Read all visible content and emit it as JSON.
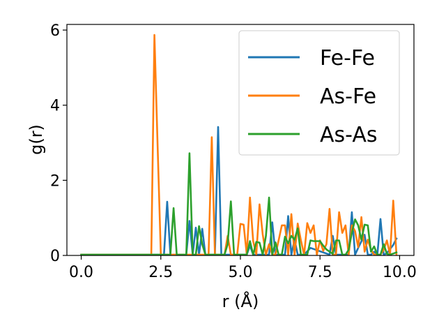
{
  "chart_data": {
    "type": "line",
    "xlabel": "r (Å)",
    "ylabel": "g(r)",
    "xlim": [
      -0.45,
      10.45
    ],
    "ylim": [
      0,
      6.15
    ],
    "xticks": [
      0.0,
      2.5,
      5.0,
      7.5,
      10.0
    ],
    "xtick_labels": [
      "0.0",
      "2.5",
      "5.0",
      "7.5",
      "10.0"
    ],
    "yticks": [
      0,
      2,
      4,
      6
    ],
    "ytick_labels": [
      "0",
      "2",
      "4",
      "6"
    ],
    "grid": false,
    "legend_position": "upper-right",
    "series": [
      {
        "name": "Fe-Fe",
        "color": "#1f77b4",
        "x": [
          0.0,
          2.5,
          2.6,
          2.7,
          2.8,
          3.3,
          3.4,
          3.5,
          3.6,
          3.7,
          3.8,
          3.9,
          4.2,
          4.3,
          4.4,
          4.6,
          5.2,
          5.3,
          5.4,
          5.9,
          6.0,
          6.1,
          6.4,
          6.5,
          6.6,
          6.7,
          6.8,
          7.0,
          7.2,
          7.8,
          7.9,
          8.0,
          8.4,
          8.5,
          8.6,
          8.7,
          8.9,
          9.0,
          9.1,
          9.2,
          9.3,
          9.4,
          9.5,
          9.6,
          9.8,
          9.9
        ],
        "values": [
          0.02,
          0.02,
          0.02,
          1.43,
          0.02,
          0.02,
          0.92,
          0.02,
          0.74,
          0.02,
          0.71,
          0.02,
          0.02,
          3.42,
          0.02,
          0.02,
          0.02,
          0.26,
          0.02,
          0.02,
          0.88,
          0.02,
          0.02,
          1.05,
          0.02,
          0.42,
          0.02,
          0.02,
          0.2,
          0.02,
          0.52,
          0.02,
          0.02,
          1.15,
          0.02,
          0.2,
          0.55,
          0.02,
          0.02,
          0.1,
          0.02,
          0.97,
          0.02,
          0.06,
          0.28,
          0.45
        ]
      },
      {
        "name": "As-Fe",
        "color": "#ff7f0e",
        "x": [
          0.0,
          2.2,
          2.3,
          2.4,
          2.5,
          3.9,
          4.0,
          4.1,
          4.2,
          4.5,
          4.6,
          4.7,
          4.9,
          5.0,
          5.1,
          5.2,
          5.3,
          5.4,
          5.5,
          5.6,
          5.7,
          5.8,
          5.9,
          6.0,
          6.1,
          6.2,
          6.3,
          6.4,
          6.5,
          6.6,
          6.7,
          6.8,
          6.9,
          7.0,
          7.1,
          7.2,
          7.3,
          7.4,
          7.5,
          7.6,
          7.7,
          7.8,
          7.9,
          8.0,
          8.1,
          8.2,
          8.3,
          8.4,
          8.5,
          8.6,
          8.7,
          8.8,
          8.9,
          9.0,
          9.1,
          9.2,
          9.3,
          9.4,
          9.5,
          9.6,
          9.7,
          9.8,
          9.9
        ],
        "values": [
          0.02,
          0.02,
          5.87,
          2.9,
          0.02,
          0.02,
          0.02,
          3.15,
          0.02,
          0.02,
          0.52,
          0.02,
          0.02,
          0.84,
          0.82,
          0.02,
          1.54,
          0.38,
          0.02,
          1.36,
          0.56,
          0.02,
          0.3,
          0.02,
          0.02,
          0.4,
          0.8,
          0.8,
          0.02,
          1.1,
          0.02,
          0.85,
          0.4,
          0.02,
          0.86,
          0.6,
          0.8,
          0.02,
          0.4,
          0.12,
          0.3,
          1.24,
          0.02,
          0.02,
          1.15,
          0.6,
          0.8,
          0.02,
          0.8,
          0.65,
          0.22,
          1.02,
          0.1,
          0.42,
          0.15,
          0.02,
          0.02,
          0.02,
          0.15,
          0.4,
          0.02,
          1.46,
          0.02
        ]
      },
      {
        "name": "As-As",
        "color": "#2ca02c",
        "x": [
          0.0,
          2.8,
          2.9,
          3.0,
          3.3,
          3.4,
          3.5,
          3.6,
          3.7,
          3.8,
          3.9,
          4.0,
          4.3,
          4.5,
          4.6,
          4.7,
          4.8,
          5.2,
          5.3,
          5.4,
          5.5,
          5.6,
          5.7,
          5.8,
          5.9,
          6.0,
          6.1,
          6.2,
          6.3,
          6.4,
          6.5,
          6.6,
          6.7,
          6.8,
          6.9,
          7.0,
          7.1,
          7.2,
          7.3,
          7.4,
          7.5,
          7.6,
          7.7,
          7.8,
          7.9,
          8.0,
          8.1,
          8.2,
          8.3,
          8.4,
          8.5,
          8.6,
          8.7,
          8.8,
          8.9,
          9.0,
          9.1,
          9.2,
          9.3,
          9.4,
          9.5,
          9.6,
          9.7,
          9.8,
          9.9
        ],
        "values": [
          0.02,
          0.02,
          1.26,
          0.02,
          0.02,
          2.72,
          0.02,
          0.02,
          0.78,
          0.3,
          0.02,
          0.02,
          0.02,
          0.02,
          0.3,
          1.44,
          0.02,
          0.02,
          0.38,
          0.02,
          0.36,
          0.34,
          0.02,
          0.52,
          1.54,
          0.02,
          0.35,
          0.02,
          0.02,
          0.5,
          0.32,
          0.52,
          0.42,
          0.72,
          0.02,
          0.02,
          0.02,
          0.4,
          0.38,
          0.38,
          0.38,
          0.26,
          0.16,
          0.1,
          0.04,
          0.4,
          0.4,
          0.02,
          0.02,
          0.15,
          0.6,
          0.96,
          0.8,
          0.42,
          0.82,
          0.8,
          0.1,
          0.24,
          0.02,
          0.02,
          0.3,
          0.04,
          0.02,
          0.05,
          0.08
        ]
      }
    ]
  }
}
